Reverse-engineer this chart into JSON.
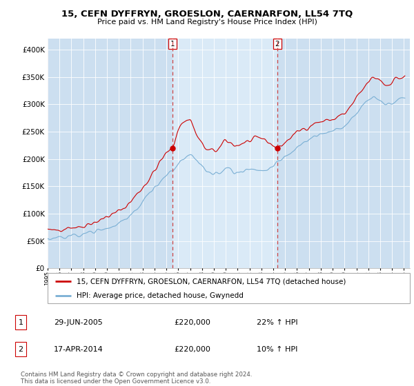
{
  "title": "15, CEFN DYFFRYN, GROESLON, CAERNARFON, LL54 7TQ",
  "subtitle": "Price paid vs. HM Land Registry's House Price Index (HPI)",
  "ylim": [
    0,
    420000
  ],
  "yticks": [
    0,
    50000,
    100000,
    150000,
    200000,
    250000,
    300000,
    350000,
    400000
  ],
  "xlim_left": 1995.0,
  "xlim_right": 2025.5,
  "background_color": "#ccdff0",
  "fig_bg": "#ffffff",
  "legend_label_red": "15, CEFN DYFFRYN, GROESLON, CAERNARFON, LL54 7TQ (detached house)",
  "legend_label_blue": "HPI: Average price, detached house, Gwynedd",
  "ann1_x": 2005.5,
  "ann2_x": 2014.33,
  "ann1_label": "1",
  "ann2_label": "2",
  "ann1_date": "29-JUN-2005",
  "ann1_price": "£220,000",
  "ann1_hpi": "22% ↑ HPI",
  "ann2_date": "17-APR-2014",
  "ann2_price": "£220,000",
  "ann2_hpi": "10% ↑ HPI",
  "footnote": "Contains HM Land Registry data © Crown copyright and database right 2024.\nThis data is licensed under the Open Government Licence v3.0.",
  "red_color": "#cc0000",
  "blue_color": "#7aafd4",
  "shade_color": "#daeaf7"
}
